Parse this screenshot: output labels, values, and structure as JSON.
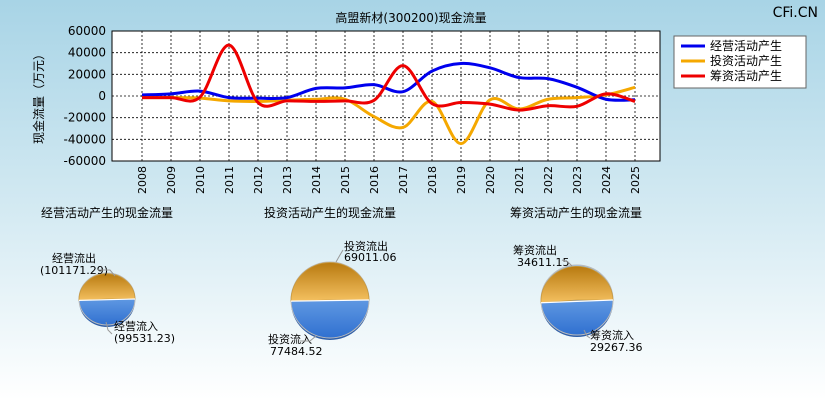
{
  "watermark": "CFi.CN",
  "chart_data": [
    {
      "type": "line",
      "title": "高盟新材(300200)现金流量",
      "ylabel": "现金流量（万元）",
      "xlabel": "",
      "categories": [
        "2008",
        "2009",
        "2010",
        "2011",
        "2012",
        "2013",
        "2014",
        "2015",
        "2016",
        "2017",
        "2018",
        "2019",
        "2020",
        "2021",
        "2022",
        "2023",
        "2024",
        "2025"
      ],
      "ylim": [
        -60000,
        60000
      ],
      "yticks": [
        60000,
        40000,
        20000,
        0,
        -20000,
        -40000,
        -60000
      ],
      "ytick_labels": [
        "60000",
        "40000",
        "20000",
        "0",
        "-20000",
        "-40000",
        "-60000"
      ],
      "grid": true,
      "legend_position": "top-right",
      "series": [
        {
          "name": "经营活动产生",
          "color": "#0000ee",
          "values": [
            1000,
            2000,
            4500,
            -1500,
            -2000,
            -1500,
            7000,
            7500,
            10500,
            4000,
            23000,
            30000,
            26000,
            17000,
            16000,
            8000,
            -3000,
            -3500
          ]
        },
        {
          "name": "投资活动产生",
          "color": "#f5a800",
          "values": [
            -1500,
            -1500,
            -2000,
            -4500,
            -5000,
            -4000,
            -3000,
            -3000,
            -19000,
            -29000,
            -5000,
            -44000,
            -3500,
            -12000,
            -3000,
            -1500,
            1000,
            8000
          ]
        },
        {
          "name": "筹资活动产生",
          "color": "#ee0000",
          "values": [
            -1500,
            -1500,
            -1000,
            47000,
            -6000,
            -4500,
            -5000,
            -4500,
            -4000,
            28000,
            -7000,
            -6000,
            -7500,
            -13000,
            -9000,
            -9500,
            2000,
            -5000
          ]
        }
      ]
    },
    {
      "type": "pie",
      "title": "经营活动产生的现金流量",
      "slices": [
        {
          "label": "经营流出",
          "value": 101171.29,
          "value_label": "(101171.29)",
          "color": "#e8a020"
        },
        {
          "label": "经营流入",
          "value": 99531.23,
          "value_label": "(99531.23)",
          "color": "#4a90e8"
        }
      ]
    },
    {
      "type": "pie",
      "title": "投资活动产生的现金流量",
      "slices": [
        {
          "label": "投资流出",
          "value": 69011.06,
          "value_label": "69011.06",
          "color": "#e8a020"
        },
        {
          "label": "投资流入",
          "value": 77484.52,
          "value_label": "77484.52",
          "color": "#4a90e8"
        }
      ]
    },
    {
      "type": "pie",
      "title": "筹资活动产生的现金流量",
      "slices": [
        {
          "label": "筹资流出",
          "value": 34611.15,
          "value_label": "34611.15",
          "color": "#e8a020"
        },
        {
          "label": "筹资流入",
          "value": 29267.36,
          "value_label": "29267.36",
          "color": "#4a90e8"
        }
      ]
    }
  ]
}
